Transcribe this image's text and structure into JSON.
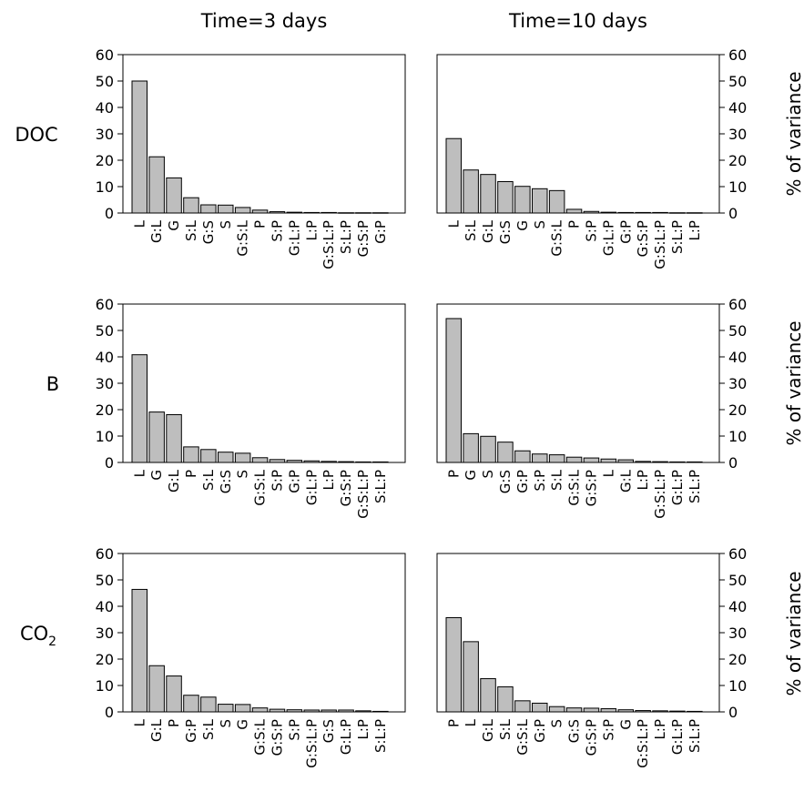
{
  "figure": {
    "col_titles": [
      "Time=3 days",
      "Time=10 days"
    ],
    "row_titles": [
      {
        "main": "DOC",
        "sub": ""
      },
      {
        "main": "B",
        "sub": ""
      },
      {
        "main": "CO",
        "sub": "2"
      }
    ],
    "ylabel": "% of variance",
    "colors": {
      "bar_fill": "#bebebe",
      "bar_stroke": "#000000",
      "axis": "#000000"
    }
  },
  "chart_data": [
    {
      "type": "bar",
      "row": "DOC",
      "column": "Time=3 days",
      "categories": [
        "L",
        "G:L",
        "G",
        "S:L",
        "G:S",
        "S",
        "G:S:L",
        "P",
        "S:P",
        "G:L:P",
        "L:P",
        "G:S:L:P",
        "S:L:P",
        "G:S:P",
        "G:P"
      ],
      "values": [
        50,
        21.3,
        13.3,
        5.8,
        3.1,
        3.0,
        2.1,
        1.1,
        0.5,
        0.3,
        0.2,
        0.2,
        0.1,
        0.1,
        0.1
      ],
      "ylim": [
        0,
        60
      ],
      "yticks": [
        0,
        10,
        20,
        30,
        40,
        50,
        60
      ],
      "ylabel": "",
      "ytick_side": "left"
    },
    {
      "type": "bar",
      "row": "DOC",
      "column": "Time=10 days",
      "categories": [
        "L",
        "S:L",
        "G:L",
        "G:S",
        "G",
        "S",
        "G:S:L",
        "P",
        "S:P",
        "G:L:P",
        "G:P",
        "G:S:P",
        "G:S:L:P",
        "S:L:P",
        "L:P"
      ],
      "values": [
        28.2,
        16.3,
        14.6,
        11.9,
        10.1,
        9.2,
        8.5,
        1.4,
        0.6,
        0.3,
        0.2,
        0.2,
        0.2,
        0.1,
        0.1
      ],
      "ylim": [
        0,
        60
      ],
      "yticks": [
        0,
        10,
        20,
        30,
        40,
        50,
        60
      ],
      "ylabel": "% of variance",
      "ytick_side": "right"
    },
    {
      "type": "bar",
      "row": "B",
      "column": "Time=3 days",
      "categories": [
        "L",
        "G",
        "G:L",
        "P",
        "S:L",
        "G:S",
        "S",
        "G:S:L",
        "S:P",
        "G:P",
        "G:L:P",
        "L:P",
        "G:S:P",
        "G:S:L:P",
        "S:L:P"
      ],
      "values": [
        40.8,
        19.1,
        18.1,
        5.9,
        4.9,
        3.9,
        3.5,
        1.8,
        1.1,
        0.8,
        0.6,
        0.4,
        0.3,
        0.2,
        0.2
      ],
      "ylim": [
        0,
        60
      ],
      "yticks": [
        0,
        10,
        20,
        30,
        40,
        50,
        60
      ],
      "ylabel": "",
      "ytick_side": "left"
    },
    {
      "type": "bar",
      "row": "B",
      "column": "Time=10 days",
      "categories": [
        "P",
        "G",
        "S",
        "G:S",
        "G:P",
        "S:P",
        "S:L",
        "G:S:L",
        "G:S:P",
        "L",
        "G:L",
        "L:P",
        "G:S:L:P",
        "G:L:P",
        "S:L:P"
      ],
      "values": [
        54.5,
        10.9,
        9.9,
        7.7,
        4.4,
        3.2,
        2.9,
        2.0,
        1.7,
        1.3,
        1.0,
        0.4,
        0.3,
        0.2,
        0.2
      ],
      "ylim": [
        0,
        60
      ],
      "yticks": [
        0,
        10,
        20,
        30,
        40,
        50,
        60
      ],
      "ylabel": "% of variance",
      "ytick_side": "right"
    },
    {
      "type": "bar",
      "row": "CO2",
      "column": "Time=3 days",
      "categories": [
        "L",
        "G:L",
        "P",
        "G:P",
        "S:L",
        "S",
        "G",
        "G:S:L",
        "G:S:P",
        "S:P",
        "G:S:L:P",
        "G:S",
        "G:L:P",
        "L:P",
        "S:L:P"
      ],
      "values": [
        46.4,
        17.5,
        13.6,
        6.3,
        5.6,
        2.9,
        2.8,
        1.5,
        1.0,
        0.8,
        0.7,
        0.7,
        0.7,
        0.4,
        0.2
      ],
      "ylim": [
        0,
        60
      ],
      "yticks": [
        0,
        10,
        20,
        30,
        40,
        50,
        60
      ],
      "ylabel": "",
      "ytick_side": "left"
    },
    {
      "type": "bar",
      "row": "CO2",
      "column": "Time=10 days",
      "categories": [
        "P",
        "L",
        "G:L",
        "S:L",
        "G:S:L",
        "G:P",
        "S",
        "G:S",
        "G:S:P",
        "S:P",
        "G",
        "G:S:L:P",
        "L:P",
        "G:L:P",
        "S:L:P"
      ],
      "values": [
        35.7,
        26.6,
        12.6,
        9.5,
        4.2,
        3.3,
        2.0,
        1.5,
        1.4,
        1.2,
        0.8,
        0.5,
        0.4,
        0.3,
        0.2
      ],
      "ylim": [
        0,
        60
      ],
      "yticks": [
        0,
        10,
        20,
        30,
        40,
        50,
        60
      ],
      "ylabel": "% of variance",
      "ytick_side": "right"
    }
  ]
}
